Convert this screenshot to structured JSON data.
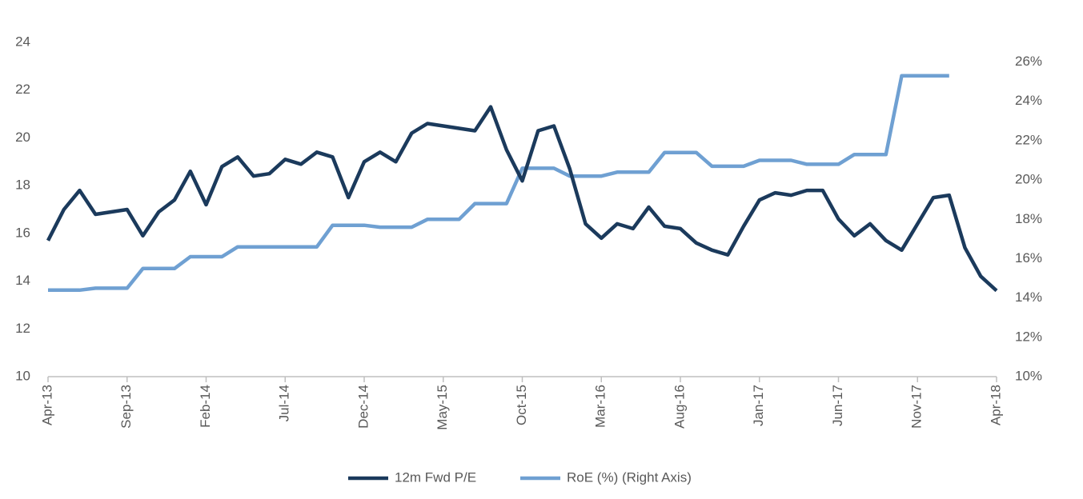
{
  "chart_data": {
    "type": "line",
    "categories": [
      "Apr-13",
      null,
      null,
      null,
      null,
      "Sep-13",
      null,
      null,
      null,
      null,
      "Feb-14",
      null,
      null,
      null,
      null,
      "Jul-14",
      null,
      null,
      null,
      null,
      "Dec-14",
      null,
      null,
      null,
      null,
      "May-15",
      null,
      null,
      null,
      null,
      "Oct-15",
      null,
      null,
      null,
      null,
      "Mar-16",
      null,
      null,
      null,
      null,
      "Aug-16",
      null,
      null,
      null,
      null,
      "Jan-17",
      null,
      null,
      null,
      null,
      "Jun-17",
      null,
      null,
      null,
      null,
      "Nov-17",
      null,
      null,
      null,
      null,
      "Apr-18"
    ],
    "series": [
      {
        "name": "12m Fwd P/E",
        "color": "#1b3a5c",
        "values": [
          15.7,
          17.0,
          17.8,
          16.8,
          16.9,
          17.0,
          15.9,
          16.9,
          17.4,
          18.6,
          17.2,
          18.8,
          19.2,
          18.4,
          18.5,
          19.1,
          18.9,
          19.4,
          19.2,
          17.5,
          19.0,
          19.4,
          19.0,
          20.2,
          20.6,
          20.5,
          20.4,
          20.3,
          21.3,
          19.5,
          18.2,
          20.3,
          20.5,
          18.7,
          16.4,
          15.8,
          16.4,
          16.2,
          17.1,
          16.3,
          16.2,
          15.6,
          15.3,
          15.1,
          16.3,
          17.4,
          17.7,
          17.6,
          17.8,
          17.8,
          16.6,
          15.9,
          16.4,
          15.7,
          15.3,
          16.4,
          17.5,
          17.6,
          15.4,
          14.2,
          13.6
        ]
      },
      {
        "name": "RoE (%) (Right Axis)",
        "color": "#6fa0d2",
        "axis": "y2",
        "values": [
          14.4,
          14.4,
          14.4,
          14.5,
          14.5,
          14.5,
          15.5,
          15.5,
          15.5,
          16.1,
          16.1,
          16.1,
          16.6,
          16.6,
          16.6,
          16.6,
          16.6,
          16.6,
          17.7,
          17.7,
          17.7,
          17.6,
          17.6,
          17.6,
          18.0,
          18.0,
          18.0,
          18.8,
          18.8,
          18.8,
          20.6,
          20.6,
          20.6,
          20.2,
          20.2,
          20.2,
          20.4,
          20.4,
          20.4,
          21.4,
          21.4,
          21.4,
          20.7,
          20.7,
          20.7,
          21.0,
          21.0,
          21.0,
          20.8,
          20.8,
          20.8,
          21.3,
          21.3,
          21.3,
          25.3,
          25.3,
          25.3,
          25.3,
          null,
          null,
          null
        ]
      }
    ],
    "ylim": [
      10,
      24
    ],
    "yticks": [
      10,
      12,
      14,
      16,
      18,
      20,
      22,
      24
    ],
    "y2lim": [
      10,
      27
    ],
    "y2ticks": [
      {
        "value": 10,
        "label": "10%"
      },
      {
        "value": 12,
        "label": "12%"
      },
      {
        "value": 14,
        "label": "14%"
      },
      {
        "value": 16,
        "label": "16%"
      },
      {
        "value": 18,
        "label": "18%"
      },
      {
        "value": 20,
        "label": "20%"
      },
      {
        "value": 22,
        "label": "22%"
      },
      {
        "value": 24,
        "label": "24%"
      },
      {
        "value": 26,
        "label": "26%"
      }
    ],
    "legend": "bottom",
    "grid": false
  }
}
